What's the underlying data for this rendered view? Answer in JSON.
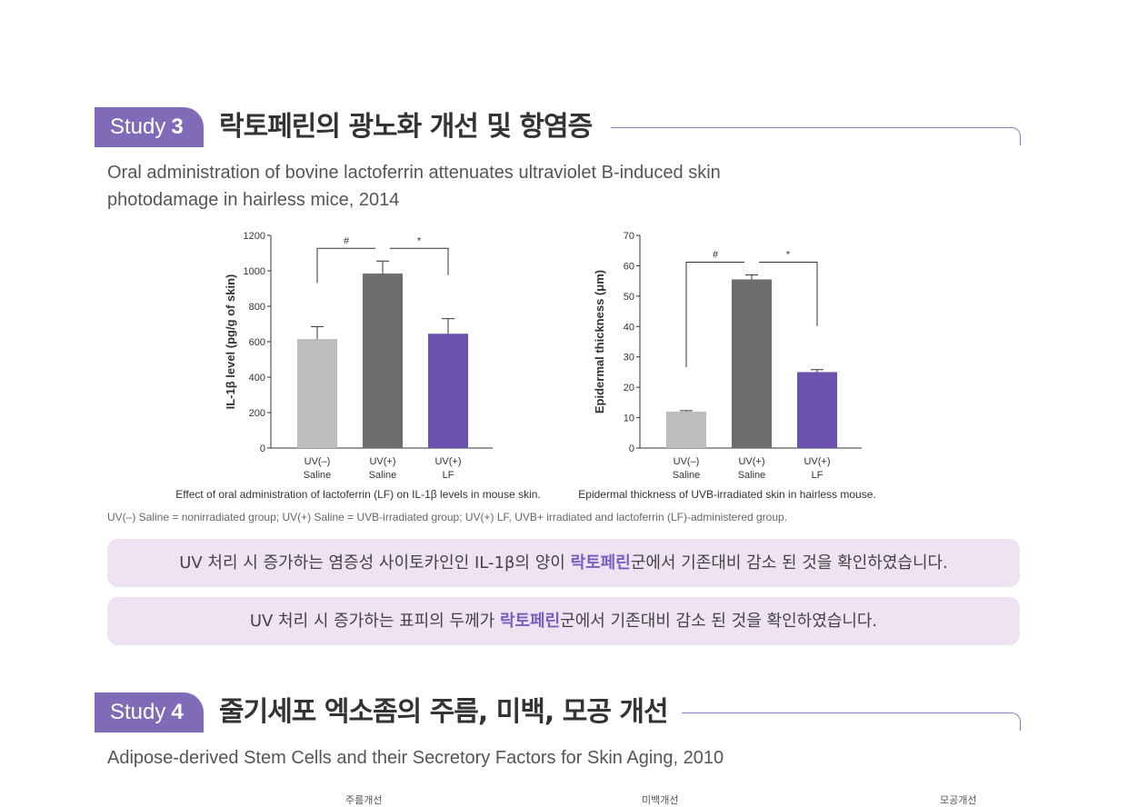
{
  "study3": {
    "badge_label": "Study",
    "badge_num": "3",
    "title": "락토페린의 광노화 개선 및 항염증",
    "paper_line1": "Oral administration of bovine lactoferrin attenuates ultraviolet B-induced skin",
    "paper_line2": "photodamage in hairless mice, 2014"
  },
  "chart_data": [
    {
      "type": "bar",
      "categories": [
        [
          "UV(–)",
          "Saline"
        ],
        [
          "UV(+)",
          "Saline"
        ],
        [
          "UV(+)",
          "LF"
        ]
      ],
      "values": [
        615,
        985,
        645
      ],
      "errors": [
        70,
        70,
        85
      ],
      "colors": [
        "#bdbdbd",
        "#6d6d6d",
        "#6c52ae"
      ],
      "ylim": [
        0,
        1200
      ],
      "yticks": [
        0,
        200,
        400,
        600,
        800,
        1000,
        1200
      ],
      "ylabel": "IL-1β level (pg/g of skin)",
      "caption": "Effect of oral administration of lactoferrin (LF) on IL-1β levels in mouse skin.",
      "brackets": [
        {
          "from": 0,
          "to": 1,
          "label": "#"
        },
        {
          "from": 1,
          "to": 2,
          "label": "*"
        }
      ]
    },
    {
      "type": "bar",
      "categories": [
        [
          "UV(–)",
          "Saline"
        ],
        [
          "UV(+)",
          "Saline"
        ],
        [
          "UV(+)",
          "LF"
        ]
      ],
      "values": [
        12,
        55.5,
        25
      ],
      "errors": [
        0.3,
        1.5,
        0.8
      ],
      "colors": [
        "#bdbdbd",
        "#6d6d6d",
        "#6c52ae"
      ],
      "ylim": [
        0,
        70
      ],
      "yticks": [
        0,
        10,
        20,
        30,
        40,
        50,
        60,
        70
      ],
      "ylabel": "Epidermal thickness (μm)",
      "caption": "Epidermal thickness of UVB-irradiated skin in hairless mouse.",
      "brackets": [
        {
          "from": 0,
          "to": 1,
          "label": "#"
        },
        {
          "from": 1,
          "to": 2,
          "label": "*"
        }
      ]
    }
  ],
  "footnote": "UV(–) Saline = nonirradiated group; UV(+) Saline = UVB-irradiated group; UV(+) LF, UVB+ irradiated and lactoferrin (LF)-administered group.",
  "callouts": [
    {
      "before": "UV 처리 시 증가하는 염증성 사이토카인인 IL-1β의 양이 ",
      "highlight": "락토페린",
      "after": "군에서 기존대비 감소 된 것을 확인하였습니다."
    },
    {
      "before": "UV 처리 시 증가하는 표피의 두께가 ",
      "highlight": "락토페린",
      "after": "군에서 기존대비 감소 된 것을 확인하였습니다."
    }
  ],
  "study4": {
    "badge_label": "Study",
    "badge_num": "4",
    "title": "줄기세포 엑소좀의 주름, 미백, 모공 개선",
    "paper_line1": "Adipose-derived Stem Cells and their Secretory Factors for Skin Aging, 2010"
  },
  "cut_labels": [
    "주름개선",
    "미백개선",
    "모공개선"
  ],
  "colors": {
    "accent": "#7f6bb8",
    "callout_bg": "#efe3f3",
    "highlight": "#7b5cc0"
  }
}
